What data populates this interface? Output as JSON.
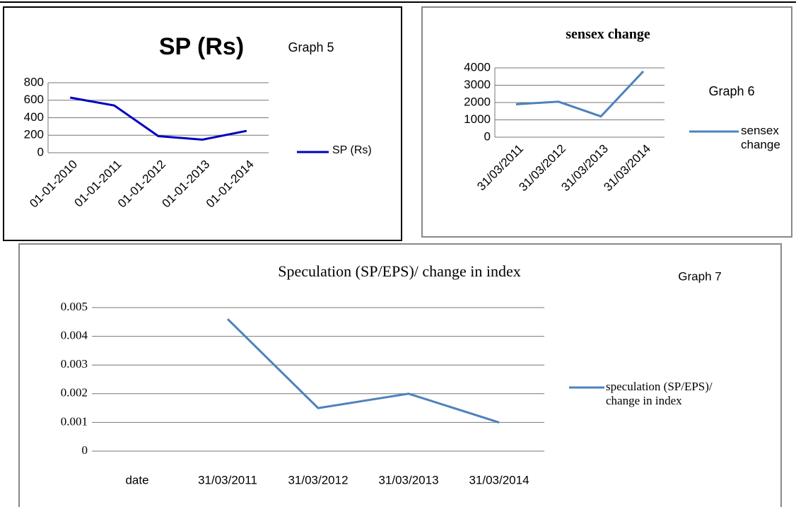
{
  "chart_data": [
    {
      "type": "line",
      "title": "SP (Rs)",
      "annotation": "Graph 5",
      "categories": [
        "01-01-2010",
        "01-01-2011",
        "01-01-2012",
        "01-01-2013",
        "01-01-2014"
      ],
      "series": [
        {
          "name": "SP (Rs)",
          "color": "#0000c0",
          "values": [
            630,
            540,
            190,
            150,
            250
          ]
        }
      ],
      "ylim": [
        0,
        800
      ],
      "yticks": [
        0,
        200,
        400,
        600,
        800
      ],
      "grid": true
    },
    {
      "type": "line",
      "title": "sensex change",
      "annotation": "Graph 6",
      "categories": [
        "31/03/2011",
        "31/03/2012",
        "31/03/2013",
        "31/03/2014"
      ],
      "series": [
        {
          "name": "sensex change",
          "color": "#4f81bd",
          "values": [
            1900,
            2050,
            1200,
            3800
          ]
        }
      ],
      "ylim": [
        0,
        4000
      ],
      "yticks": [
        0,
        1000,
        2000,
        3000,
        4000
      ],
      "grid": true
    },
    {
      "type": "line",
      "title": "Speculation (SP/EPS)/ change in index",
      "annotation": "Graph 7",
      "categories": [
        "date",
        "31/03/2011",
        "31/03/2012",
        "31/03/2013",
        "31/03/2014"
      ],
      "series": [
        {
          "name": "speculation (SP/EPS)/ change in index",
          "color": "#4f81bd",
          "values": [
            null,
            0.0046,
            0.0015,
            0.002,
            0.001
          ]
        }
      ],
      "ylim": [
        0,
        0.005
      ],
      "yticks": [
        0,
        0.001,
        0.002,
        0.003,
        0.004,
        0.005
      ],
      "grid": true
    }
  ]
}
